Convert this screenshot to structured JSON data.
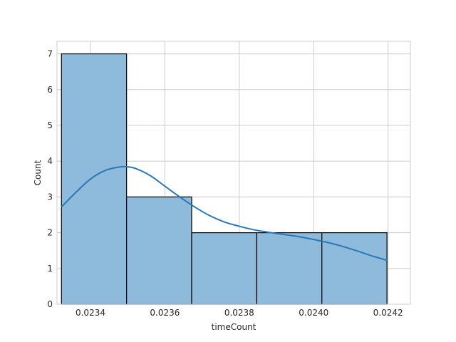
{
  "chart_data": {
    "type": "histogram",
    "title": "",
    "xlabel": "timeCount",
    "ylabel": "Count",
    "xlim": [
      0.02331,
      0.02426
    ],
    "ylim": [
      0,
      7.35
    ],
    "grid": true,
    "bins": [
      {
        "x0": 0.023322,
        "x1": 0.023497,
        "count": 7
      },
      {
        "x0": 0.023497,
        "x1": 0.023672,
        "count": 3
      },
      {
        "x0": 0.023672,
        "x1": 0.023847,
        "count": 2
      },
      {
        "x0": 0.023847,
        "x1": 0.024022,
        "count": 2
      },
      {
        "x0": 0.024022,
        "x1": 0.024197,
        "count": 2
      }
    ],
    "kde": {
      "x": [
        0.023322,
        0.02336,
        0.0234,
        0.02344,
        0.02348,
        0.0235,
        0.02352,
        0.02356,
        0.0236,
        0.02364,
        0.02368,
        0.02372,
        0.02376,
        0.0238,
        0.02384,
        0.02388,
        0.02392,
        0.02396,
        0.024,
        0.02404,
        0.02408,
        0.02412,
        0.02416,
        0.024197
      ],
      "y": [
        2.72,
        3.12,
        3.5,
        3.74,
        3.84,
        3.84,
        3.8,
        3.6,
        3.3,
        3.0,
        2.72,
        2.48,
        2.3,
        2.18,
        2.08,
        2.01,
        1.95,
        1.89,
        1.81,
        1.72,
        1.61,
        1.48,
        1.34,
        1.23
      ]
    },
    "xticks": [
      0.0234,
      0.0236,
      0.0238,
      0.024,
      0.0242
    ],
    "xtick_labels": [
      "0.0234",
      "0.0236",
      "0.0238",
      "0.0240",
      "0.0242"
    ],
    "yticks": [
      0,
      1,
      2,
      3,
      4,
      5,
      6,
      7
    ],
    "ytick_labels": [
      "0",
      "1",
      "2",
      "3",
      "4",
      "5",
      "6",
      "7"
    ],
    "colors": {
      "bar_fill": "#8ebadb",
      "bar_edge": "#000000",
      "kde_line": "#2a78b5",
      "grid": "#cccccc",
      "frame": "#cccccc"
    }
  }
}
